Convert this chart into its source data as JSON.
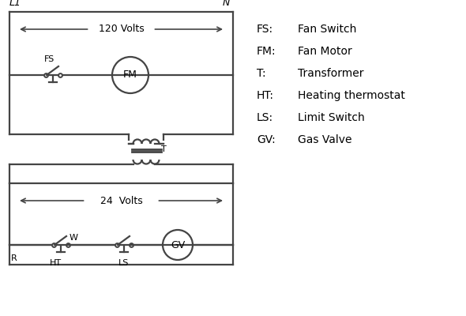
{
  "bg_color": "#ffffff",
  "line_color": "#444444",
  "text_color": "#000000",
  "legend_items": [
    [
      "FS:",
      "Fan Switch"
    ],
    [
      "FM:",
      "Fan Motor"
    ],
    [
      "T:",
      "Transformer"
    ],
    [
      "HT:",
      "Heating thermostat"
    ],
    [
      "LS:",
      "Limit Switch"
    ],
    [
      "GV:",
      "Gas Valve"
    ]
  ]
}
